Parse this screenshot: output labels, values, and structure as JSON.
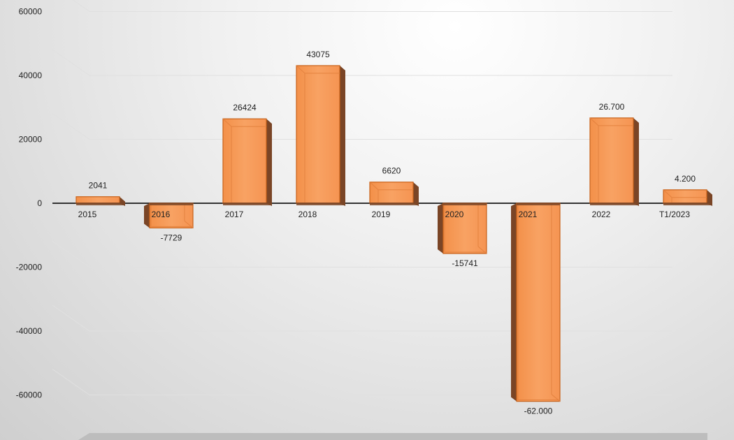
{
  "chart_data": {
    "type": "bar",
    "categories": [
      "2015",
      "2016",
      "2017",
      "2018",
      "2019",
      "2020",
      "2021",
      "2022",
      "T1/2023"
    ],
    "values": [
      2041,
      -7729,
      26424,
      43075,
      6620,
      -15741,
      -62000,
      26700,
      4200
    ],
    "data_labels": [
      "2041",
      "-7729",
      "26424",
      "43075",
      "6620",
      "-15741",
      "-62.000",
      "26.700",
      "4.200"
    ],
    "yticks": [
      60000,
      40000,
      20000,
      0,
      -20000,
      -40000,
      -60000
    ],
    "ytick_labels": [
      "60000",
      "40000",
      "20000",
      "0",
      "-20000",
      "-40000",
      "-60000"
    ],
    "ylim": [
      -60000,
      60000
    ],
    "title": "",
    "xlabel": "",
    "ylabel": "",
    "grid": true,
    "legend": "none",
    "style": "3d-column",
    "colors": {
      "bar_front": "#f79a5a",
      "bar_edge": "#c8621a",
      "bar_side": "#7a4526",
      "bar_top": "#f5b27f",
      "axis": "#333333",
      "grid": "#e0e0e0",
      "floor": "#bdbdbd"
    }
  }
}
